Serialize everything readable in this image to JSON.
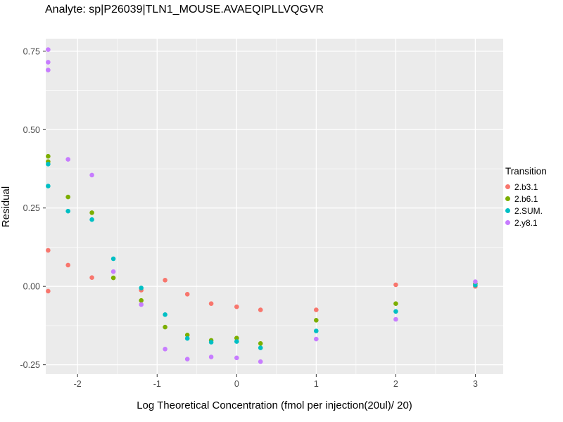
{
  "chart_data": {
    "type": "scatter",
    "title": "Analyte: sp|P26039|TLN1_MOUSE.AVAEQIPLLVQGVR",
    "xlabel": "Log Theoretical Concentration (fmol per injection(20ul)/ 20)",
    "ylabel": "Residual",
    "xlim": [
      -2.4,
      3.35
    ],
    "ylim": [
      -0.28,
      0.79
    ],
    "x_tick_values": [
      -2,
      -1,
      0,
      1,
      2,
      3
    ],
    "x_tick_labels": [
      "-2",
      "-1",
      "0",
      "1",
      "2",
      "3"
    ],
    "y_tick_values": [
      0.75,
      0.5,
      0.25,
      0,
      -0.25
    ],
    "y_tick_labels": [
      "0.75",
      "0.50",
      "0.25",
      "0.00",
      "-0.25"
    ],
    "x_minor_ticks": [
      -1.5,
      -0.5,
      0.5,
      1.5,
      2.5
    ],
    "y_minor_ticks": [
      0.625,
      0.375,
      0.125,
      -0.125
    ],
    "grid": true,
    "legend_position": "right",
    "legend_title": "Transition",
    "colors": {
      "panel_bg": "#EBEBEB",
      "grid": "#FFFFFF",
      "tick_text": "#4D4D4D",
      "tick_mark": "#333333",
      "axis_text": "#000000"
    },
    "series": [
      {
        "name": "2.b3.1",
        "color": "#F8766D",
        "points": [
          [
            -2.37,
            0.115
          ],
          [
            -2.37,
            -0.015
          ],
          [
            -2.12,
            0.068
          ],
          [
            -1.82,
            0.028
          ],
          [
            -1.2,
            -0.012
          ],
          [
            -0.9,
            0.02
          ],
          [
            -0.62,
            -0.025
          ],
          [
            -0.32,
            -0.055
          ],
          [
            0,
            -0.065
          ],
          [
            0.3,
            -0.075
          ],
          [
            1,
            -0.075
          ],
          [
            2,
            0.005
          ],
          [
            3,
            0
          ]
        ]
      },
      {
        "name": "2.b6.1",
        "color": "#7CAE00",
        "points": [
          [
            -2.37,
            0.415
          ],
          [
            -2.37,
            0.398
          ],
          [
            -2.12,
            0.285
          ],
          [
            -1.82,
            0.235
          ],
          [
            -1.55,
            0.027
          ],
          [
            -1.2,
            -0.045
          ],
          [
            -0.9,
            -0.13
          ],
          [
            -0.62,
            -0.155
          ],
          [
            -0.32,
            -0.172
          ],
          [
            0,
            -0.165
          ],
          [
            0.3,
            -0.182
          ],
          [
            1,
            -0.108
          ],
          [
            2,
            -0.055
          ],
          [
            3,
            0.008
          ]
        ]
      },
      {
        "name": "2.SUM.",
        "color": "#00BFC4",
        "points": [
          [
            -2.37,
            0.39
          ],
          [
            -2.37,
            0.32
          ],
          [
            -2.12,
            0.24
          ],
          [
            -1.82,
            0.213
          ],
          [
            -1.55,
            0.088
          ],
          [
            -1.2,
            -0.005
          ],
          [
            -0.9,
            -0.09
          ],
          [
            -0.62,
            -0.166
          ],
          [
            -0.32,
            -0.178
          ],
          [
            0,
            -0.176
          ],
          [
            0.3,
            -0.196
          ],
          [
            1,
            -0.142
          ],
          [
            2,
            -0.08
          ],
          [
            3,
            0.004
          ]
        ]
      },
      {
        "name": "2.y8.1",
        "color": "#C77CFF",
        "points": [
          [
            -2.37,
            0.755
          ],
          [
            -2.37,
            0.715
          ],
          [
            -2.37,
            0.69
          ],
          [
            -2.12,
            0.405
          ],
          [
            -1.82,
            0.355
          ],
          [
            -1.55,
            0.047
          ],
          [
            -1.2,
            -0.058
          ],
          [
            -0.9,
            -0.2
          ],
          [
            -0.62,
            -0.232
          ],
          [
            -0.32,
            -0.225
          ],
          [
            0,
            -0.228
          ],
          [
            0.3,
            -0.24
          ],
          [
            1,
            -0.168
          ],
          [
            2,
            -0.105
          ],
          [
            3,
            0.015
          ]
        ]
      }
    ]
  }
}
